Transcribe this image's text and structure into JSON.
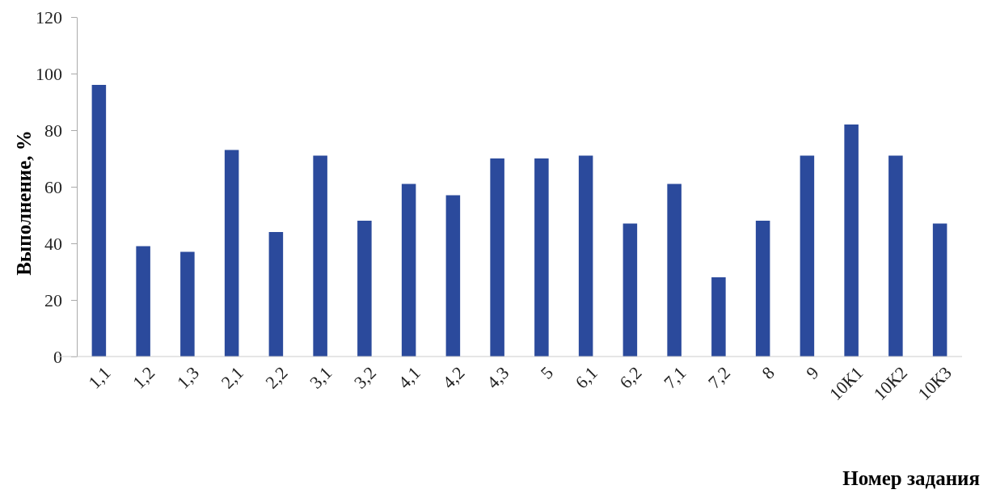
{
  "chart_data": {
    "type": "bar",
    "xlabel": "Номер задания",
    "ylabel": "Выполнение, %",
    "categories": [
      "1,1",
      "1,2",
      "1,3",
      "2,1",
      "2,2",
      "3,1",
      "3,2",
      "4,1",
      "4,2",
      "4,3",
      "5",
      "6,1",
      "6,2",
      "7,1",
      "7,2",
      "8",
      "9",
      "10К1",
      "10К2",
      "10К3"
    ],
    "values": [
      96,
      39,
      37,
      73,
      44,
      71,
      48,
      61,
      57,
      70,
      70,
      71,
      47,
      61,
      28,
      48,
      71,
      82,
      71,
      47
    ],
    "color": "#2b4a9c",
    "ylim": [
      0,
      120
    ],
    "yticks": [
      0,
      20,
      40,
      60,
      80,
      100,
      120
    ],
    "grid": false
  }
}
